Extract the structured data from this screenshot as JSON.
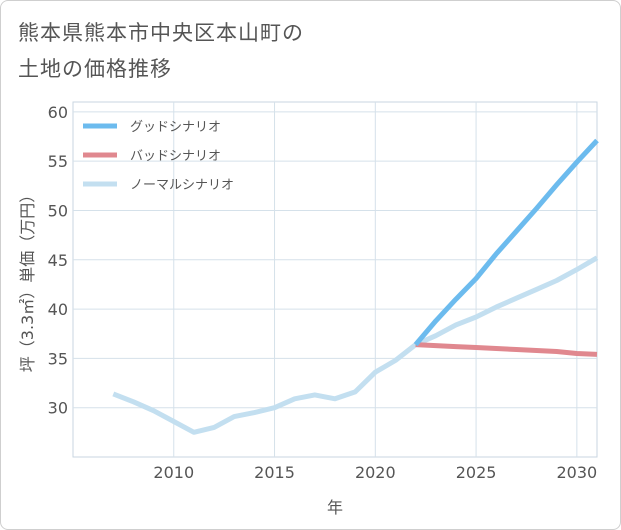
{
  "title": {
    "line1": "熊本県熊本市中央区本山町の",
    "line2": "土地の価格推移"
  },
  "chart_data": {
    "type": "line",
    "xlabel": "年",
    "ylabel": "坪（3.3㎡）単価（万円）",
    "xlim": [
      2005,
      2031
    ],
    "ylim": [
      25,
      61
    ],
    "xticks": [
      2010,
      2015,
      2020,
      2025,
      2030
    ],
    "yticks": [
      30,
      35,
      40,
      45,
      50,
      55,
      60
    ],
    "grid": true,
    "legend_position": "top-left",
    "series": [
      {
        "name": "グッドシナリオ",
        "color": "#6cbbee",
        "x": [
          2022,
          2023,
          2024,
          2025,
          2026,
          2027,
          2028,
          2029,
          2030,
          2031
        ],
        "values": [
          36.4,
          38.8,
          41.0,
          43.1,
          45.6,
          47.9,
          50.2,
          52.6,
          54.9,
          57.1
        ]
      },
      {
        "name": "バッドシナリオ",
        "color": "#e0888f",
        "x": [
          2022,
          2023,
          2024,
          2025,
          2026,
          2027,
          2028,
          2029,
          2030,
          2031
        ],
        "values": [
          36.4,
          36.3,
          36.2,
          36.1,
          36.0,
          35.9,
          35.8,
          35.7,
          35.5,
          35.4
        ]
      },
      {
        "name": "ノーマルシナリオ",
        "color": "#c3dff0",
        "x": [
          2007,
          2008,
          2009,
          2010,
          2011,
          2012,
          2013,
          2014,
          2015,
          2016,
          2017,
          2018,
          2019,
          2020,
          2021,
          2022,
          2023,
          2024,
          2025,
          2026,
          2027,
          2028,
          2029,
          2030,
          2031
        ],
        "values": [
          31.4,
          30.6,
          29.7,
          28.6,
          27.5,
          28.0,
          29.1,
          29.5,
          30.0,
          30.9,
          31.3,
          30.9,
          31.6,
          33.6,
          34.8,
          36.4,
          37.3,
          38.4,
          39.2,
          40.2,
          41.1,
          42.0,
          42.9,
          44.0,
          45.2
        ]
      }
    ]
  }
}
